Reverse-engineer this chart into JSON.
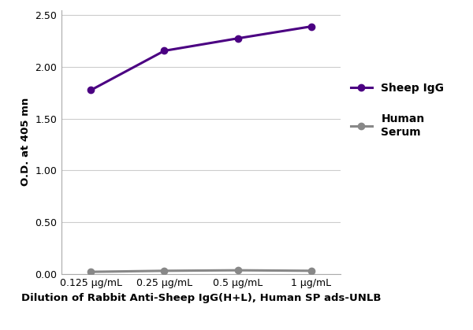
{
  "x_labels": [
    "0.125 μg/mL",
    "0.25 μg/mL",
    "0.5 μg/mL",
    "1 μg/mL"
  ],
  "x_positions": [
    0,
    1,
    2,
    3
  ],
  "sheep_igg_values": [
    1.775,
    2.155,
    2.275,
    2.39
  ],
  "human_serum_values": [
    0.02,
    0.03,
    0.035,
    0.03
  ],
  "sheep_color": "#4B0082",
  "human_color": "#888888",
  "sheep_label": "Sheep IgG",
  "human_label": "Human\nSerum",
  "ylabel": "O.D. at 405 mn",
  "xlabel": "Dilution of Rabbit Anti-Sheep IgG(H+L), Human SP ads-UNLB",
  "ylim": [
    0.0,
    2.55
  ],
  "yticks": [
    0.0,
    0.5,
    1.0,
    1.5,
    2.0,
    2.5
  ],
  "ytick_labels": [
    "0.00",
    "0.50",
    "1.00",
    "1.50",
    "2.00",
    "2.50"
  ],
  "marker": "o",
  "linewidth": 2.2,
  "markersize": 6,
  "background_color": "#ffffff",
  "grid_color": "#cccccc",
  "xlabel_fontsize": 9.5,
  "ylabel_fontsize": 9.5,
  "tick_fontsize": 9,
  "legend_fontsize": 10
}
